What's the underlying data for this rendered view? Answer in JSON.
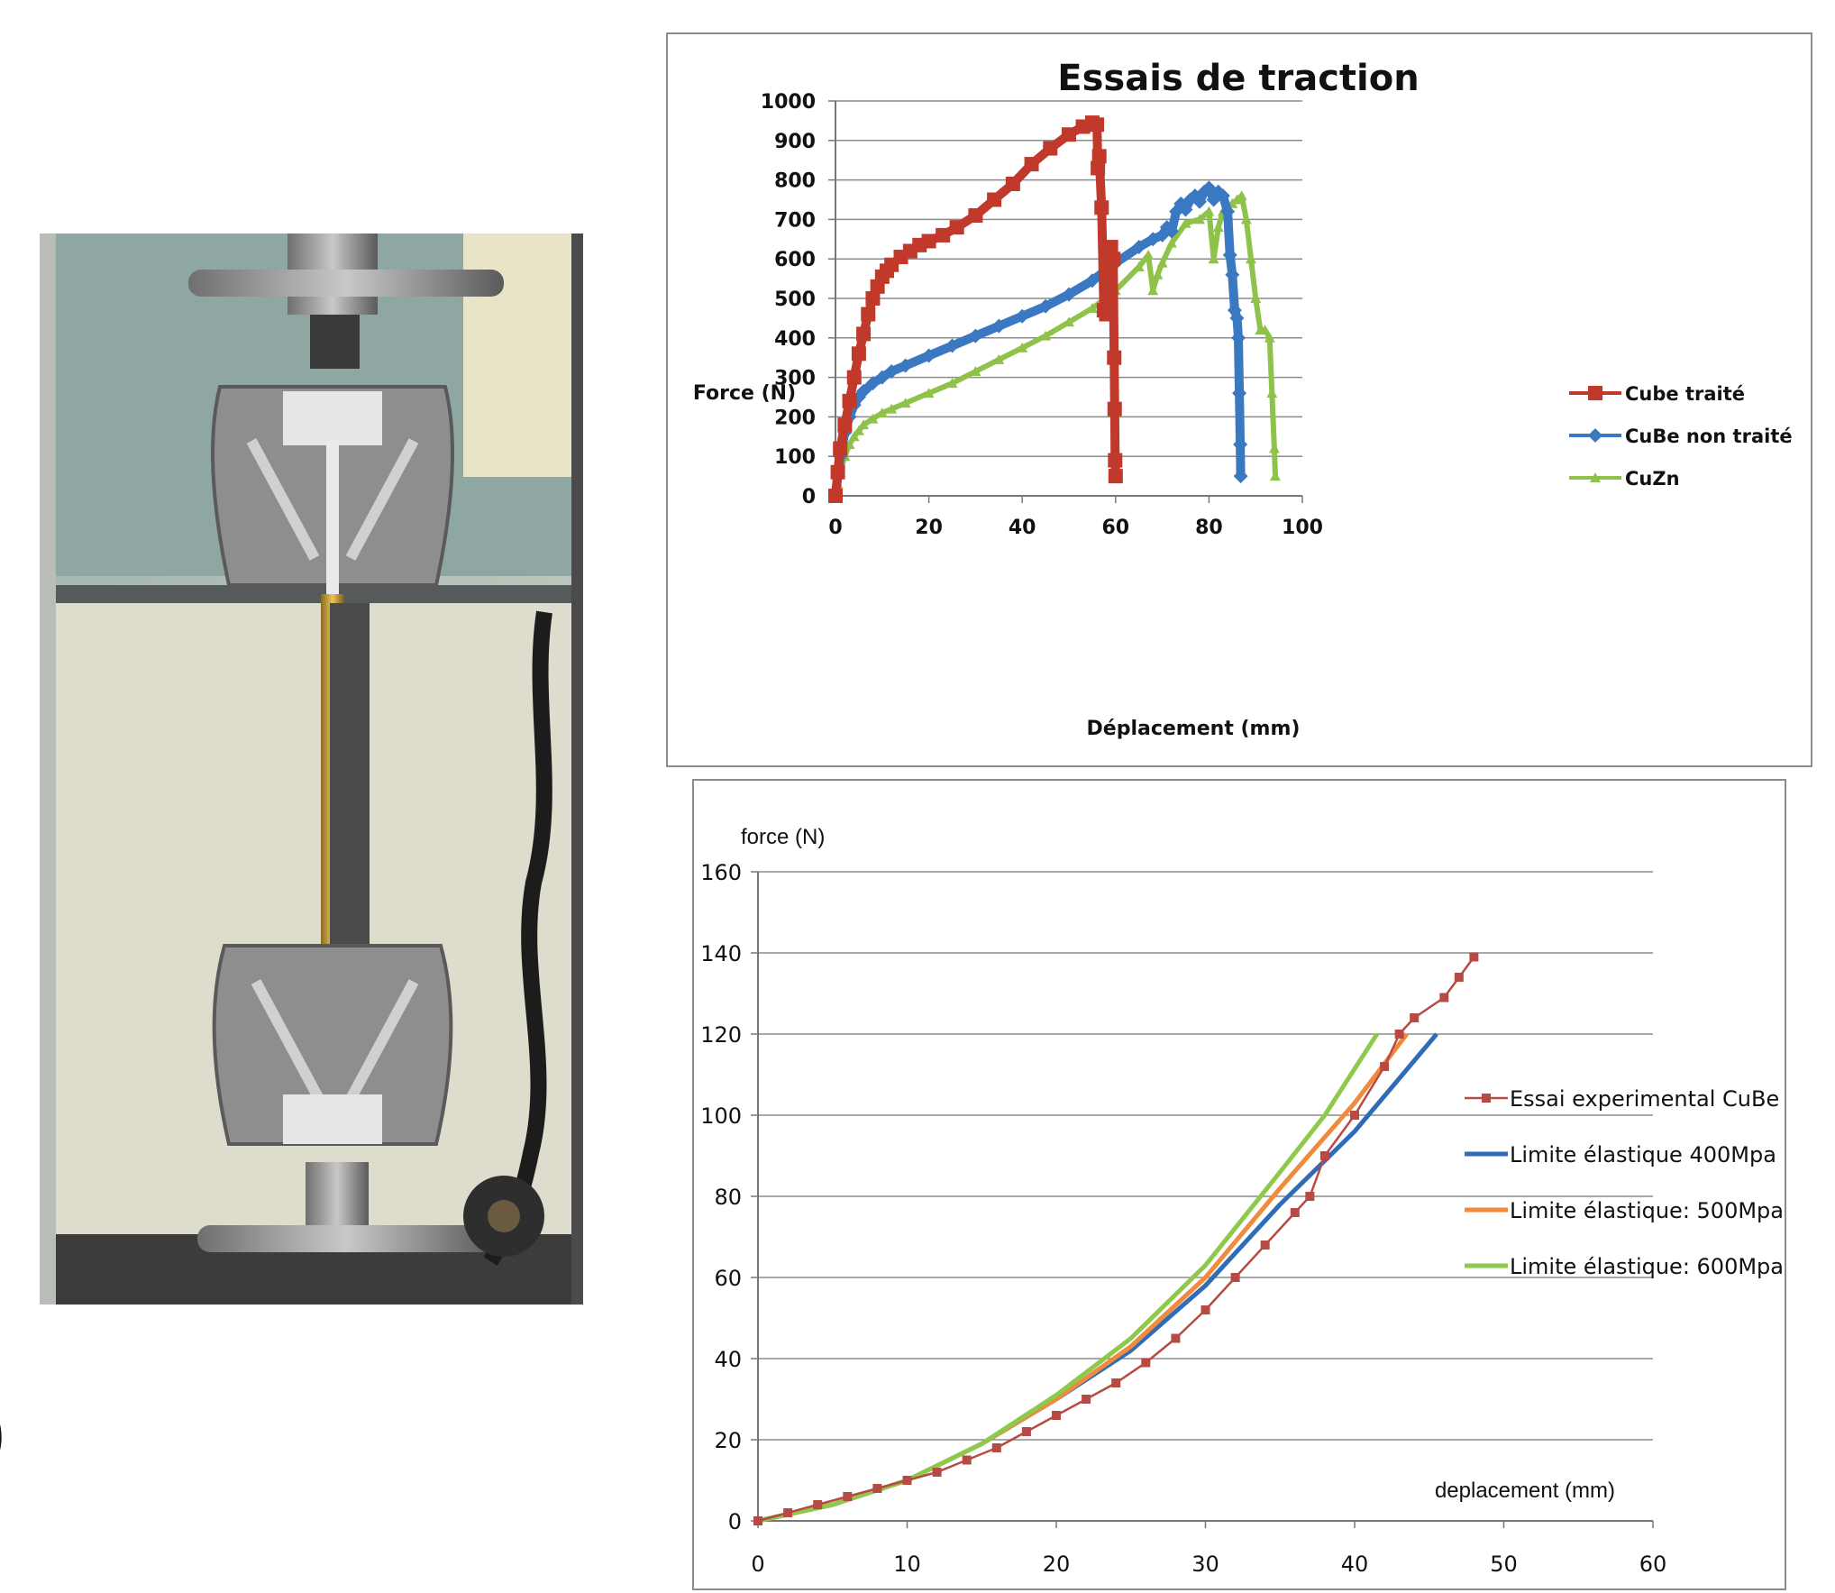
{
  "photo": {
    "description_icon": "tensile-testing-machine-photo"
  },
  "side_mark": ")",
  "colors": {
    "cube_traite": "#c0392b",
    "cube_non_traite": "#3a78c2",
    "cuzn": "#8fc24a",
    "essai": "#b84a44",
    "limite400": "#2e6cb8",
    "limite500": "#f08a3c",
    "limite600": "#8dc94a"
  },
  "chart_data": [
    {
      "type": "line",
      "title": "Essais de traction",
      "xlabel": "Déplacement (mm)",
      "ylabel": "Force (N)",
      "xlim": [
        0,
        100
      ],
      "ylim": [
        0,
        1000
      ],
      "xticks": [
        "0",
        "20",
        "40",
        "60",
        "80",
        "100"
      ],
      "yticks": [
        "0",
        "100",
        "200",
        "300",
        "400",
        "500",
        "600",
        "700",
        "800",
        "900",
        "1000"
      ],
      "grid": "horizontal",
      "legend": "right",
      "series": [
        {
          "name": "Cube traité",
          "marker": "square",
          "x": [
            0,
            0.5,
            1,
            2,
            3,
            4,
            5,
            6,
            7,
            8,
            9,
            10,
            11,
            12,
            14,
            16,
            18,
            20,
            23,
            26,
            30,
            34,
            38,
            42,
            46,
            50,
            53,
            55,
            56,
            56.2,
            56.5,
            57,
            57.5,
            58,
            58.5,
            59,
            59.5,
            59.7,
            59.8,
            59.9,
            60
          ],
          "y": [
            0,
            60,
            120,
            180,
            240,
            300,
            360,
            410,
            460,
            500,
            530,
            555,
            570,
            585,
            605,
            620,
            635,
            645,
            660,
            680,
            710,
            750,
            790,
            840,
            880,
            915,
            935,
            945,
            940,
            830,
            860,
            730,
            470,
            460,
            560,
            630,
            600,
            350,
            220,
            90,
            50
          ]
        },
        {
          "name": "CuBe non traité",
          "marker": "diamond",
          "x": [
            0,
            0.5,
            1,
            2,
            3,
            4,
            5,
            6,
            8,
            10,
            12,
            15,
            20,
            25,
            30,
            35,
            40,
            45,
            50,
            55,
            60,
            65,
            68,
            70,
            71,
            72,
            73,
            74,
            75,
            76,
            77,
            78,
            79,
            80,
            81,
            82,
            83,
            84,
            84.5,
            85,
            85.5,
            86,
            86.3,
            86.5,
            86.7,
            86.8
          ],
          "y": [
            0,
            50,
            100,
            160,
            200,
            230,
            250,
            265,
            285,
            300,
            315,
            330,
            355,
            380,
            405,
            430,
            455,
            480,
            510,
            545,
            590,
            630,
            650,
            660,
            680,
            670,
            720,
            740,
            725,
            750,
            760,
            745,
            770,
            780,
            750,
            770,
            760,
            720,
            610,
            560,
            470,
            450,
            400,
            260,
            130,
            50
          ]
        },
        {
          "name": "CuZn",
          "marker": "triangle",
          "x": [
            0,
            0.5,
            1,
            2,
            3,
            4,
            5,
            6,
            8,
            10,
            12,
            15,
            20,
            25,
            30,
            35,
            40,
            45,
            50,
            55,
            60,
            65,
            67,
            68,
            69,
            70,
            72,
            75,
            78,
            80,
            81,
            82,
            83,
            84,
            85,
            86,
            87,
            88,
            89,
            90,
            91,
            92,
            93,
            93.5,
            94,
            94.2
          ],
          "y": [
            0,
            30,
            60,
            100,
            130,
            150,
            165,
            180,
            195,
            210,
            220,
            235,
            260,
            285,
            315,
            345,
            375,
            405,
            440,
            475,
            520,
            580,
            610,
            520,
            560,
            590,
            640,
            690,
            700,
            720,
            600,
            680,
            720,
            730,
            740,
            750,
            760,
            700,
            600,
            500,
            420,
            420,
            400,
            260,
            120,
            50
          ]
        }
      ]
    },
    {
      "type": "line",
      "xlabel": "deplacement (mm)",
      "ylabel": "force (N)",
      "xlim": [
        0,
        60
      ],
      "ylim": [
        0,
        160
      ],
      "xticks": [
        "0",
        "10",
        "20",
        "30",
        "40",
        "50",
        "60"
      ],
      "yticks": [
        "0",
        "20",
        "40",
        "60",
        "80",
        "100",
        "120",
        "140",
        "160"
      ],
      "grid": "horizontal",
      "legend": "right",
      "series": [
        {
          "name": "Essai experimental CuBe traité",
          "marker": "square-small",
          "x": [
            0,
            2,
            4,
            6,
            8,
            10,
            12,
            14,
            16,
            18,
            20,
            22,
            24,
            26,
            28,
            30,
            32,
            34,
            36,
            37,
            38,
            40,
            42,
            43,
            44,
            46,
            47,
            48
          ],
          "y": [
            0,
            2,
            4,
            6,
            8,
            10,
            12,
            15,
            18,
            22,
            26,
            30,
            34,
            39,
            45,
            52,
            60,
            68,
            76,
            80,
            90,
            100,
            112,
            120,
            124,
            129,
            134,
            139
          ]
        },
        {
          "name": "Limite élastique 400Mpa",
          "x": [
            0,
            5,
            10,
            15,
            20,
            25,
            30,
            35,
            40,
            45.5
          ],
          "y": [
            0,
            4,
            10,
            19,
            30,
            42,
            58,
            78,
            96,
            120
          ]
        },
        {
          "name": "Limite élastique: 500Mpa",
          "x": [
            0,
            5,
            10,
            15,
            20,
            25,
            30,
            35,
            40,
            43.5
          ],
          "y": [
            0,
            4,
            10,
            19,
            30,
            43,
            60,
            82,
            103,
            120
          ]
        },
        {
          "name": "Limite élastique: 600Mpa",
          "x": [
            0,
            5,
            10,
            15,
            20,
            25,
            30,
            35,
            38,
            41.5
          ],
          "y": [
            0,
            4,
            10,
            19,
            31,
            45,
            63,
            86,
            100,
            120
          ]
        }
      ]
    }
  ]
}
